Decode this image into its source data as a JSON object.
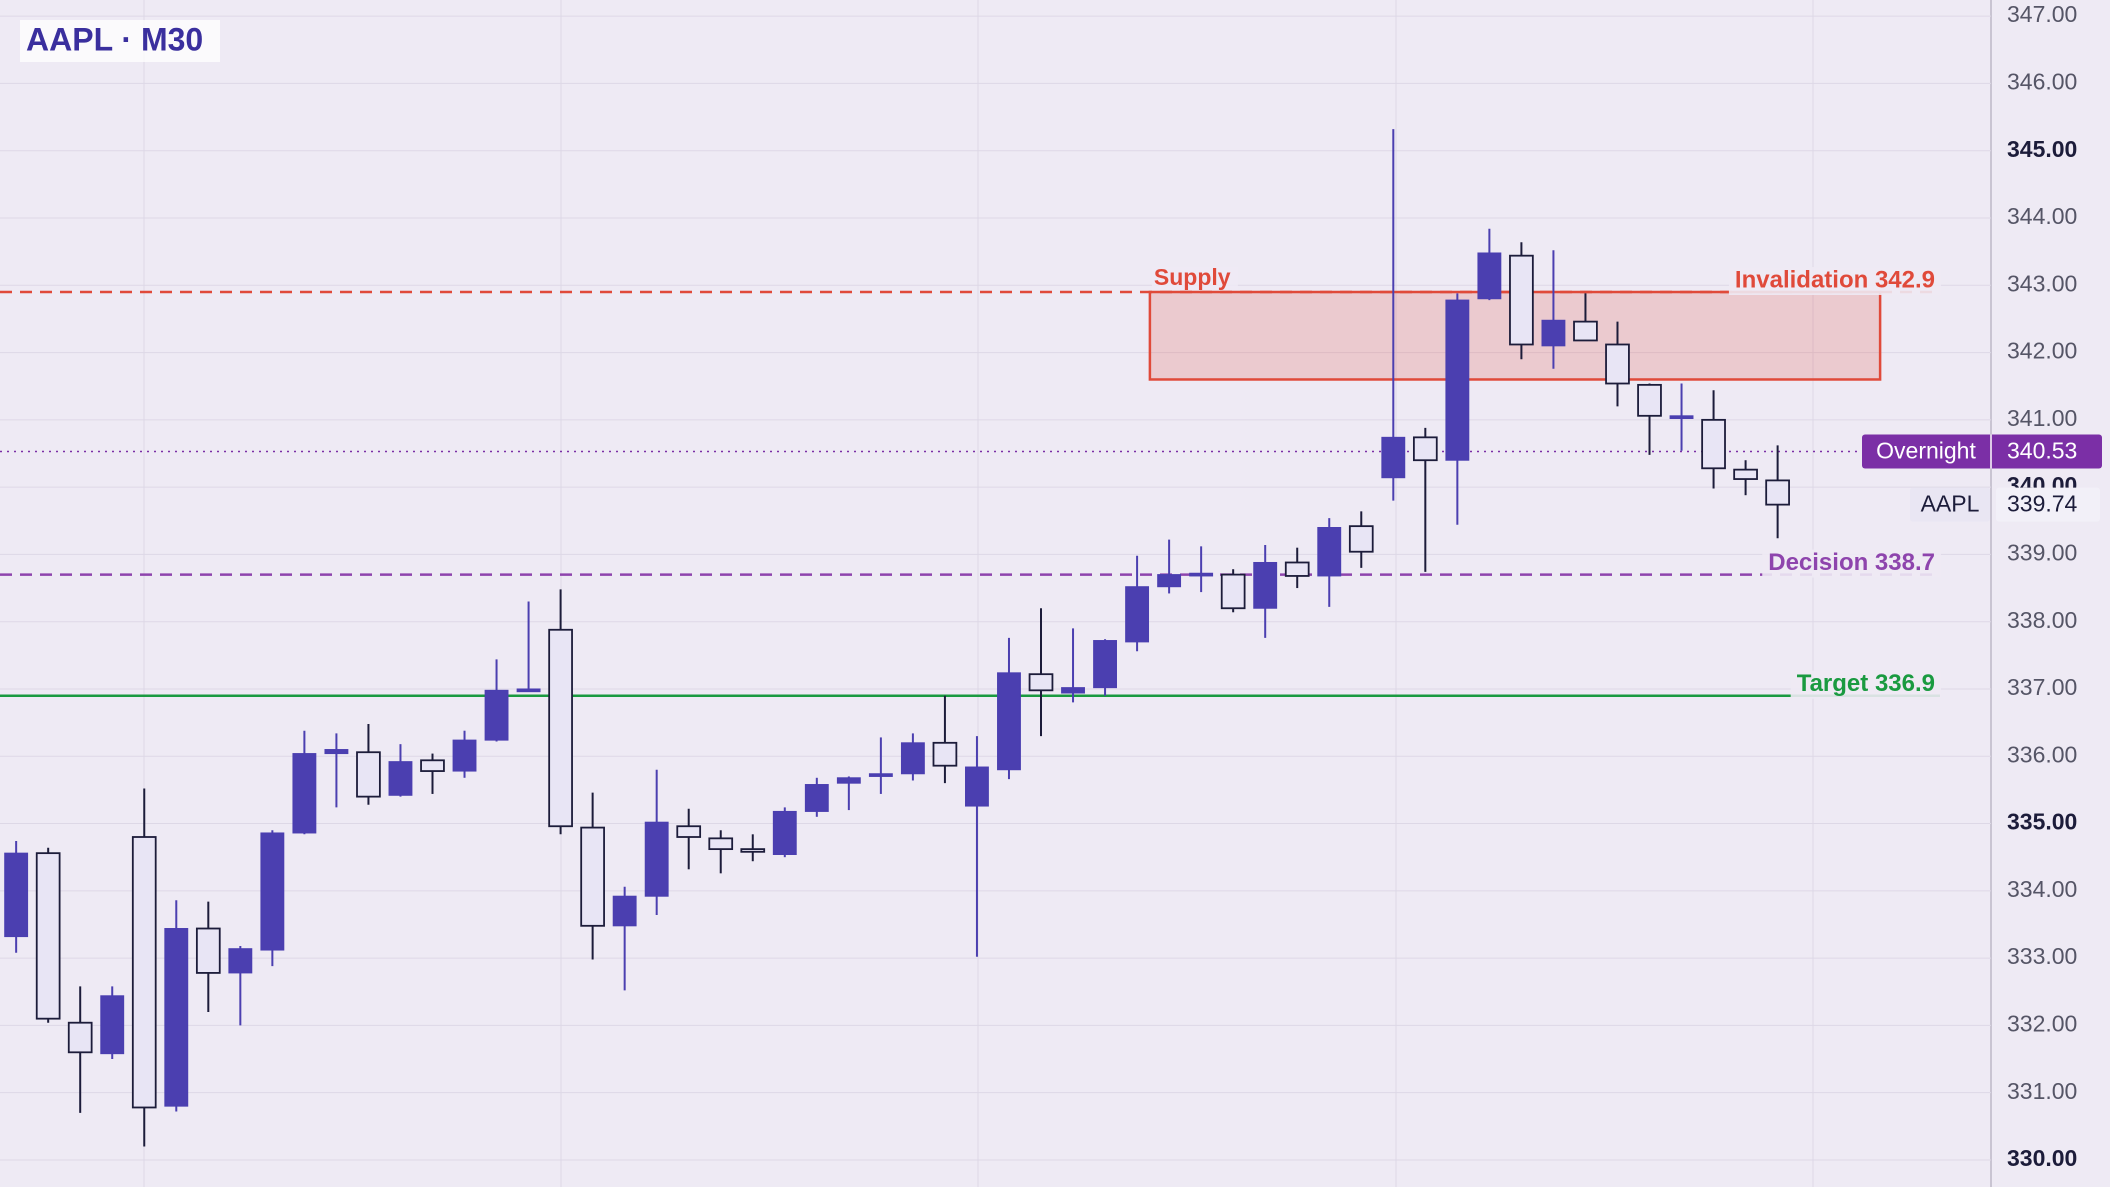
{
  "chart_data": {
    "type": "candlestick",
    "title": "AAPL · M30",
    "open": [
      333.32,
      334.56,
      332.04,
      331.58,
      334.8,
      330.8,
      333.44,
      332.78,
      333.12,
      334.86,
      336.04,
      336.06,
      335.42,
      335.94,
      335.78,
      336.24,
      336.96,
      337.88,
      334.94,
      333.48,
      333.92,
      334.96,
      334.78,
      334.62,
      334.54,
      335.18,
      335.6,
      335.7,
      335.74,
      336.2,
      335.26,
      335.8,
      337.22,
      336.94,
      337.02,
      337.7,
      338.52,
      338.68,
      338.7,
      338.2,
      338.88,
      338.68,
      339.42,
      340.14,
      340.74,
      340.4,
      342.8,
      343.44,
      342.1,
      342.46,
      342.12,
      341.52,
      341.02,
      341.0,
      340.26,
      340.1
    ],
    "high": [
      334.74,
      334.64,
      332.58,
      332.58,
      335.52,
      333.86,
      333.84,
      333.18,
      334.9,
      336.38,
      336.34,
      336.48,
      336.18,
      336.04,
      336.38,
      337.44,
      338.3,
      338.48,
      335.46,
      334.06,
      335.8,
      335.22,
      334.9,
      334.84,
      335.24,
      335.68,
      335.7,
      336.28,
      336.34,
      336.9,
      336.3,
      337.76,
      338.2,
      337.9,
      337.74,
      338.98,
      339.22,
      339.12,
      338.78,
      339.14,
      339.1,
      339.54,
      339.64,
      345.32,
      340.88,
      342.88,
      343.84,
      343.64,
      343.52,
      342.88,
      342.46,
      341.54,
      341.54,
      341.44,
      340.4,
      340.62
    ],
    "low": [
      333.08,
      332.04,
      330.7,
      331.5,
      330.2,
      330.72,
      332.2,
      332.0,
      332.88,
      334.84,
      335.24,
      335.28,
      335.4,
      335.44,
      335.68,
      336.22,
      336.96,
      334.84,
      332.98,
      332.52,
      333.64,
      334.32,
      334.26,
      334.44,
      334.5,
      335.1,
      335.2,
      335.44,
      335.64,
      335.6,
      333.02,
      335.66,
      336.3,
      336.8,
      336.9,
      337.56,
      338.42,
      338.44,
      338.14,
      337.76,
      338.5,
      338.22,
      338.8,
      339.8,
      338.74,
      339.44,
      342.78,
      341.9,
      341.76,
      342.18,
      341.2,
      340.48,
      340.54,
      339.98,
      339.88,
      339.24
    ],
    "close": [
      334.56,
      332.1,
      331.6,
      332.44,
      330.78,
      333.44,
      332.78,
      333.14,
      334.86,
      336.04,
      336.1,
      335.4,
      335.92,
      335.78,
      336.24,
      336.98,
      337.0,
      334.96,
      333.48,
      333.92,
      335.02,
      334.8,
      334.62,
      334.58,
      335.18,
      335.58,
      335.68,
      335.74,
      336.2,
      335.86,
      335.84,
      337.24,
      336.98,
      337.02,
      337.72,
      338.52,
      338.7,
      338.72,
      338.2,
      338.88,
      338.68,
      339.4,
      339.04,
      340.74,
      340.4,
      342.78,
      343.48,
      342.12,
      342.48,
      342.18,
      341.54,
      341.06,
      341.06,
      340.28,
      340.12,
      339.74
    ],
    "up_color": "#4b3fb0",
    "down_color": "#e8e5f5",
    "ylim": [
      329.5,
      347.25
    ],
    "yticks": [
      {
        "value": 330,
        "label": "330.00"
      },
      {
        "value": 331,
        "label": "331.00"
      },
      {
        "value": 332,
        "label": "332.00"
      },
      {
        "value": 333,
        "label": "333.00"
      },
      {
        "value": 334,
        "label": "334.00"
      },
      {
        "value": 335,
        "label": "335.00"
      },
      {
        "value": 336,
        "label": "336.00"
      },
      {
        "value": 337,
        "label": "337.00"
      },
      {
        "value": 338,
        "label": "338.00"
      },
      {
        "value": 339,
        "label": "339.00"
      },
      {
        "value": 340,
        "label": "340.00"
      },
      {
        "value": 341,
        "label": "341.00"
      },
      {
        "value": 342,
        "label": "342.00"
      },
      {
        "value": 343,
        "label": "343.00"
      },
      {
        "value": 344,
        "label": "344.00"
      },
      {
        "value": 345,
        "label": "345.00"
      },
      {
        "value": 346,
        "label": "346.00"
      },
      {
        "value": 347,
        "label": "347.00"
      }
    ],
    "grid": true,
    "levels": [
      {
        "label": "Invalidation 342.9",
        "value": 342.9,
        "color": "#e04a3a",
        "style": "dashed"
      },
      {
        "label": "Decision 338.7",
        "value": 338.7,
        "color": "#8e44ad",
        "style": "dashed"
      },
      {
        "label": "Target 336.9",
        "value": 336.9,
        "color": "#1a9a40",
        "style": "solid"
      }
    ],
    "zone": {
      "label": "Supply",
      "top": 342.9,
      "bottom": 341.6,
      "x_start": 35.4,
      "x_end": 58.2,
      "color": "#e04a3a"
    },
    "overnight": {
      "label": "Overnight",
      "value": 340.53,
      "value_label": "340.53",
      "color": "#7b2fa6"
    },
    "last_price": {
      "label": "AAPL",
      "value": 339.74,
      "value_label": "339.74"
    }
  }
}
